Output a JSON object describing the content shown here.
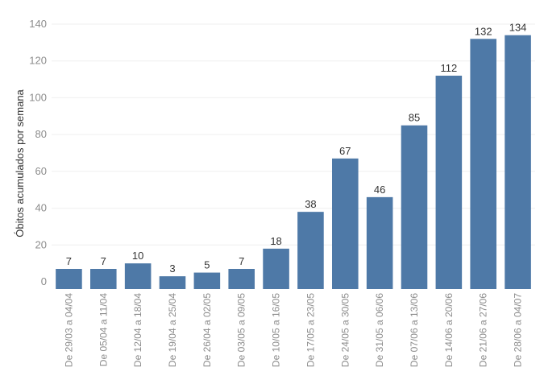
{
  "chart_data": {
    "type": "bar",
    "ylabel": "Óbitos acumulados por semana",
    "categories": [
      "De 29/03 a 04/04",
      "De 05/04 a 11/04",
      "De 12/04 a 18/04",
      "De 19/04 a 25/04",
      "De 26/04 a 02/05",
      "De 03/05 a 09/05",
      "De 10/05 a 16/05",
      "De 17/05 a 23/05",
      "De 24/05 a 30/05",
      "De 31/05 a 06/06",
      "De 07/06 a 13/06",
      "De 14/06 a 20/06",
      "De 21/06 a 27/06",
      "De 28/06 a 04/07"
    ],
    "values": [
      7,
      7,
      10,
      3,
      5,
      7,
      18,
      38,
      67,
      46,
      85,
      112,
      132,
      134
    ],
    "yticks": [
      0,
      20,
      40,
      60,
      80,
      100,
      120,
      140
    ],
    "ylim": [
      0,
      140
    ],
    "grid": true,
    "colors": {
      "bar": "#4e79a7"
    }
  }
}
